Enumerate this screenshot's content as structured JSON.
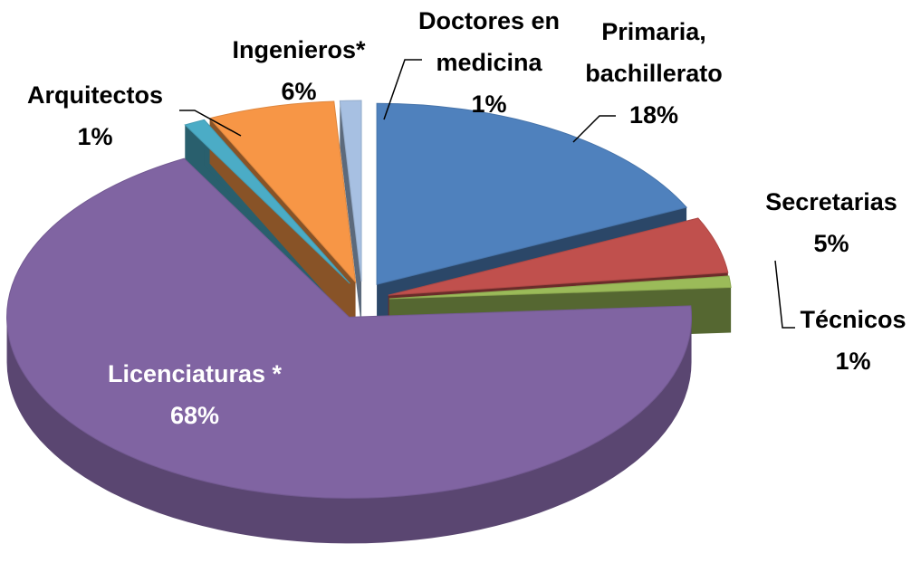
{
  "chart_data": {
    "type": "pie",
    "categories": [
      "Primaria, bachillerato",
      "Secretarias",
      "Técnicos",
      "Licenciaturas *",
      "Arquitectos",
      "Ingenieros*",
      "Doctores en medicina"
    ],
    "values": [
      18,
      5,
      1,
      68,
      1,
      6,
      1
    ],
    "value_labels": [
      "18%",
      "5%",
      "1%",
      "68%",
      "1%",
      "6%",
      "1%"
    ],
    "colors": [
      "#4f81bd",
      "#c0504d",
      "#9bbb59",
      "#8064a2",
      "#4bacc6",
      "#f79646",
      "#a7c0e2"
    ]
  }
}
